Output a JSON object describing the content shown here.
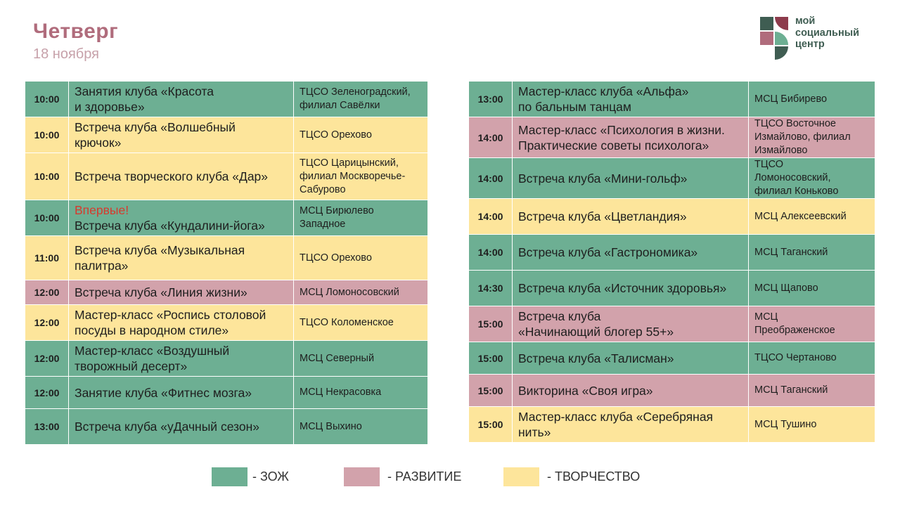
{
  "header": {
    "day": "Четверг",
    "date": "18 ноября"
  },
  "logo": {
    "line1": "мой",
    "line2": "социальный",
    "line3": "центр"
  },
  "colors": {
    "zozh": "#6daf93",
    "razvitie": "#d2a2ab",
    "tvorchestvo": "#fde59b",
    "title": "#b06c7c",
    "new_badge": "#d63a2e"
  },
  "left_events": [
    {
      "time": "10:00",
      "new_label": "",
      "title": "Занятия клуба «Красота\nи здоровье»",
      "place": "ТЦСО Зеленоградский, филиал Савёлки",
      "category": "zozh"
    },
    {
      "time": "10:00",
      "new_label": "",
      "title": "Встреча клуба «Волшебный\nкрючок»",
      "place": "ТЦСО Орехово",
      "category": "tvorchestvo"
    },
    {
      "time": "10:00",
      "new_label": "",
      "title": "Встреча творческого клуба «Дар»",
      "place": "ТЦСО Царицынский, филиал Москворечье-Сабурово",
      "category": "tvorchestvo"
    },
    {
      "time": "10:00",
      "new_label": "Впервые!",
      "title": "Встреча клуба «Кундалини-йога»",
      "place": "МСЦ Бирюлево\nЗападное",
      "category": "zozh"
    },
    {
      "time": "11:00",
      "new_label": "",
      "title": "Встреча клуба «Музыкальная\nпалитра»",
      "place": "ТЦСО Орехово",
      "category": "tvorchestvo"
    },
    {
      "time": "12:00",
      "new_label": "",
      "title": "Встреча клуба «Линия жизни»",
      "place": "МСЦ Ломоносовский",
      "category": "razvitie"
    },
    {
      "time": "12:00",
      "new_label": "",
      "title": "Мастер-класс «Роспись столовой\nпосуды в народном стиле»",
      "place": "ТЦСО Коломенское",
      "category": "tvorchestvo"
    },
    {
      "time": "12:00",
      "new_label": "",
      "title": "Мастер-класс «Воздушный\nтворожный десерт»",
      "place": "МСЦ Северный",
      "category": "zozh"
    },
    {
      "time": "12:00",
      "new_label": "",
      "title": "Занятие клуба «Фитнес мозга»",
      "place": "МСЦ Некрасовка",
      "category": "zozh"
    },
    {
      "time": "13:00",
      "new_label": "",
      "title": "Встреча клуба «уДачный сезон»",
      "place": "МСЦ Выхино",
      "category": "zozh"
    }
  ],
  "right_events": [
    {
      "time": "13:00",
      "new_label": "",
      "title": "Мастер-класс клуба «Альфа»\nпо бальным танцам",
      "place": "МСЦ Бибирево",
      "category": "zozh"
    },
    {
      "time": "14:00",
      "new_label": "",
      "title": "Мастер-класс «Психология в жизни.\nПрактические советы психолога»",
      "place": "ТЦСО Восточное Измайлово, филиал Измайлово",
      "category": "razvitie"
    },
    {
      "time": "14:00",
      "new_label": "",
      "title": "Встреча клуба «Мини-гольф»",
      "place": "ТЦСО\nЛомоносовский,\nфилиал Коньково",
      "category": "zozh"
    },
    {
      "time": "14:00",
      "new_label": "",
      "title": "Встреча  клуба «Цветландия»",
      "place": "МСЦ Алексеевский",
      "category": "tvorchestvo"
    },
    {
      "time": "14:00",
      "new_label": "",
      "title": "Встреча клуба «Гастрономика»",
      "place": "МСЦ Таганский",
      "category": "zozh"
    },
    {
      "time": "14:30",
      "new_label": "",
      "title": "Встреча клуба «Источник здоровья»",
      "place": "МСЦ Щапово",
      "category": "zozh"
    },
    {
      "time": "15:00",
      "new_label": "",
      "title": "Встреча клуба\n«Начинающий блогер 55+»",
      "place": "МСЦ\nПреображенское",
      "category": "razvitie"
    },
    {
      "time": "15:00",
      "new_label": "",
      "title": "Встреча клуба «Талисман»",
      "place": "ТЦСО Чертаново",
      "category": "zozh"
    },
    {
      "time": "15:00",
      "new_label": "",
      "title": "Викторина «Своя игра»",
      "place": "МСЦ Таганский",
      "category": "razvitie"
    },
    {
      "time": "15:00",
      "new_label": "",
      "title": "Мастер-класс клуба «Серебряная\nнить»",
      "place": "МСЦ Тушино",
      "category": "tvorchestvo"
    }
  ],
  "legend": [
    {
      "label": "- ЗОЖ",
      "category": "zozh"
    },
    {
      "label": "- РАЗВИТИЕ",
      "category": "razvitie"
    },
    {
      "label": "- ТВОРЧЕСТВО",
      "category": "tvorchestvo"
    }
  ]
}
